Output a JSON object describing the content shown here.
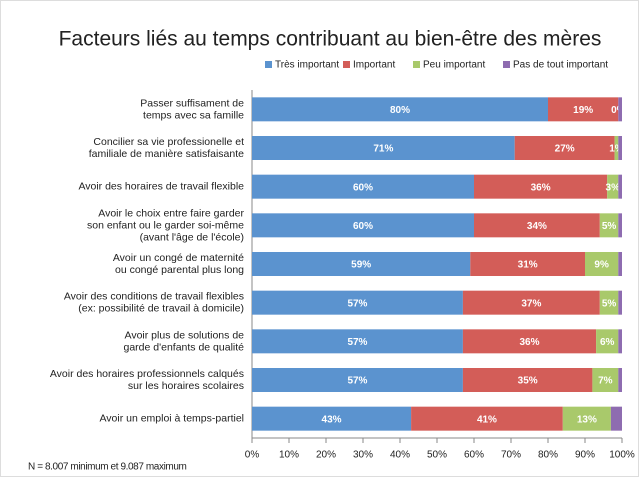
{
  "chart_data": {
    "type": "stacked-bar-horizontal",
    "title": "Facteurs liés au temps contribuant au bien-être des mères",
    "footnote": "N = 8.007 minimum et 9.087 maximum",
    "categories": [
      [
        "Passer suffisament de",
        "temps avec sa famille"
      ],
      [
        "Concilier sa vie professionelle et",
        "familiale de manière satisfaisante"
      ],
      [
        "Avoir des horaires de travail flexible"
      ],
      [
        "Avoir le choix entre faire garder",
        "son enfant ou le garder soi-même",
        "(avant l'âge de l'école)"
      ],
      [
        "Avoir un congé de maternité",
        "ou congé parental plus long"
      ],
      [
        "Avoir des conditions de travail flexibles",
        "(ex: possibilité de travail à domicile)"
      ],
      [
        "Avoir plus de solutions de",
        "garde d'enfants de qualité"
      ],
      [
        "Avoir des horaires professionnels calqués",
        "sur les horaires scolaires"
      ],
      [
        "Avoir un emploi à temps-partiel"
      ]
    ],
    "series": [
      {
        "name": "Très important",
        "color": "#5b93cf",
        "values": [
          80,
          71,
          60,
          60,
          59,
          57,
          57,
          57,
          43
        ],
        "value_labels": [
          "80%",
          "71%",
          "60%",
          "60%",
          "59%",
          "57%",
          "57%",
          "57%",
          "43%"
        ]
      },
      {
        "name": "Important",
        "color": "#d35d58",
        "values": [
          19,
          27,
          36,
          34,
          31,
          37,
          36,
          35,
          41
        ],
        "value_labels": [
          "19%",
          "27%",
          "36%",
          "34%",
          "31%",
          "37%",
          "36%",
          "35%",
          "41%"
        ]
      },
      {
        "name": "Peu important",
        "color": "#a9c96b",
        "values": [
          0,
          1,
          3,
          5,
          9,
          5,
          6,
          7,
          13
        ],
        "value_labels": [
          "0%",
          "1%",
          "3%",
          "5%",
          "9%",
          "5%",
          "6%",
          "7%",
          "13%"
        ]
      },
      {
        "name": "Pas de tout important",
        "color": "#8e6cb0",
        "values": [
          1,
          1,
          1,
          1,
          1,
          1,
          1,
          1,
          3
        ]
      }
    ],
    "xlim": [
      0,
      100
    ],
    "xticks": [
      {
        "value": 0,
        "label": "0%"
      },
      {
        "value": 10,
        "label": "10%"
      },
      {
        "value": 20,
        "label": "20%"
      },
      {
        "value": 30,
        "label": "30%"
      },
      {
        "value": 40,
        "label": "40%"
      },
      {
        "value": 50,
        "label": "50%"
      },
      {
        "value": 60,
        "label": "60%"
      },
      {
        "value": 70,
        "label": "70%"
      },
      {
        "value": 80,
        "label": "80%"
      },
      {
        "value": 90,
        "label": "90%"
      },
      {
        "value": 100,
        "label": "100%"
      }
    ]
  }
}
